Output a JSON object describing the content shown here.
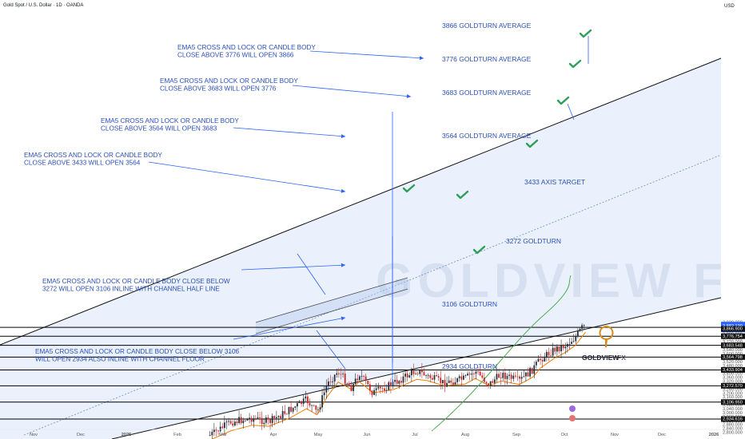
{
  "header": {
    "title": "Gold Spot / U.S. Dollar · 1D · OANDA",
    "currency": "USD"
  },
  "colors": {
    "up": "#2a2e39",
    "down": "#c62828",
    "blue": "#2962ff",
    "green": "#2e9e5a",
    "ema": "#f57c00",
    "sma": "#4caf50",
    "channel_fill": "#e6eefb",
    "level": "#000000",
    "text_blue": "#2b4fb8"
  },
  "price_tags": [
    {
      "label": "3,882.130",
      "sub": "04:24:13",
      "value": 3882.13,
      "highlight": true
    },
    {
      "label": "3,866.900",
      "value": 3866.9
    },
    {
      "label": "3,776.754",
      "value": 3776.754
    },
    {
      "label": "3,683.548",
      "value": 3683.548
    },
    {
      "label": "3,564.798",
      "value": 3564.798
    },
    {
      "label": "3,433.904",
      "value": 3433.904
    },
    {
      "label": "3,272.570",
      "value": 3272.57
    },
    {
      "label": "3,106.950",
      "value": 3106.95
    },
    {
      "label": "2,934.616",
      "value": 2934.616
    }
  ],
  "level_labels": [
    {
      "text": "3866 GOLDTURN AVERAGE",
      "value": 3866.9
    },
    {
      "text": "3776 GOLDTURN AVERAGE",
      "value": 3776.754
    },
    {
      "text": "3683 GOLDTURN AVERAGE",
      "value": 3683.548
    },
    {
      "text": "3564 GOLDTURN AVERAGE",
      "value": 3564.798
    },
    {
      "text": "3433 AXIS TARGET",
      "value": 3433.904
    },
    {
      "text": "3272 GOLDTURN",
      "value": 3272.57
    },
    {
      "text": "3106 GOLDTURN",
      "value": 3106.95
    },
    {
      "text": "2934 GOLDTURN",
      "value": 2934.616
    }
  ],
  "notes": [
    {
      "lines": [
        "EMA5 CROSS AND LOCK OR CANDLE BODY",
        "CLOSE ABOVE 3776 WILL OPEN 3866"
      ]
    },
    {
      "lines": [
        "EMA5 CROSS AND LOCK OR CANDLE BODY",
        "CLOSE ABOVE 3683 WILL OPEN 3776"
      ]
    },
    {
      "lines": [
        "EMA5 CROSS AND LOCK OR CANDLE BODY",
        "CLOSE ABOVE 3564 WILL OPEN 3683"
      ]
    },
    {
      "lines": [
        "EMA5 CROSS AND LOCK OR CANDLE BODY",
        "CLOSE ABOVE 3433 WILL OPEN 3564"
      ]
    },
    {
      "lines": [
        "EMA5 CROSS AND LOCK OR CANDLE BODY CLOSE BELOW",
        "3272 WILL OPEN 3106 INLINE WITH CHANNEL HALF LINE"
      ]
    },
    {
      "lines": [
        "EMA5 CROSS AND LOCK OR CANDLE BODY CLOSE BELOW 3106",
        "WILL OPEN 2934 ALSO INLINE WITH CHANNEL FLOOR"
      ]
    }
  ],
  "logo": {
    "name": "GOLDVIEW",
    "suffix": "FX",
    "watermark": "GOLDVIEW F"
  },
  "chart_data": {
    "type": "candlestick",
    "title": "Gold Spot / U.S. Dollar · 1D · OANDA",
    "ylim": [
      2790,
      3925
    ],
    "y_ticks": [
      2800,
      2840,
      2880,
      2920,
      2960,
      3000,
      3040,
      3080,
      3120,
      3160,
      3200,
      3240,
      3280,
      3320,
      3360,
      3400,
      3440,
      3480,
      3520,
      3560,
      3600,
      3640,
      3680,
      3720,
      3760,
      3800,
      3840,
      3880,
      3920
    ],
    "y_tick_labels": [
      "2,800.000",
      "2,840.000",
      "2,880.000",
      "2,920.000",
      "2,960.000",
      "3,000.000",
      "3,040.000",
      "3,080.000",
      "3,120.000",
      "3,160.000",
      "3,200.000",
      "3,240.000",
      "3,280.000",
      "3,320.000",
      "3,360.000",
      "3,400.000",
      "3,440.000",
      "3,480.000",
      "3,520.000",
      "3,560.000",
      "3,600.000",
      "3,640.000",
      "3,680.000",
      "3,720.000",
      "3,760.000",
      "3,800.000",
      "3,840.000",
      "3,880.000",
      "3,920.000"
    ],
    "x_labels": [
      "Nov",
      "Dec",
      "2025",
      "Feb",
      "Mar",
      "Apr",
      "May",
      "Jun",
      "Jul",
      "Aug",
      "Sep",
      "Oct",
      "Nov",
      "Dec",
      "2026"
    ],
    "levels": [
      3866.9,
      3776.754,
      3683.548,
      3564.798,
      3433.904,
      3272.57,
      3106.95,
      2934.616
    ],
    "last_price": 3882.13,
    "close_path": [
      {
        "date": "2025-01-27",
        "close": 2770
      },
      {
        "date": "2025-02-10",
        "close": 2905
      },
      {
        "date": "2025-02-24",
        "close": 2945
      },
      {
        "date": "2025-03-07",
        "close": 2905
      },
      {
        "date": "2025-03-21",
        "close": 3030
      },
      {
        "date": "2025-04-01",
        "close": 3130
      },
      {
        "date": "2025-04-08",
        "close": 3000
      },
      {
        "date": "2025-04-15",
        "close": 3300
      },
      {
        "date": "2025-04-22",
        "close": 3420
      },
      {
        "date": "2025-05-01",
        "close": 3250
      },
      {
        "date": "2025-05-06",
        "close": 3400
      },
      {
        "date": "2025-05-15",
        "close": 3200
      },
      {
        "date": "2025-05-29",
        "close": 3300
      },
      {
        "date": "2025-06-13",
        "close": 3430
      },
      {
        "date": "2025-06-20",
        "close": 3370
      },
      {
        "date": "2025-07-01",
        "close": 3300
      },
      {
        "date": "2025-07-15",
        "close": 3345
      },
      {
        "date": "2025-07-22",
        "close": 3420
      },
      {
        "date": "2025-07-31",
        "close": 3290
      },
      {
        "date": "2025-08-08",
        "close": 3390
      },
      {
        "date": "2025-08-20",
        "close": 3320
      },
      {
        "date": "2025-08-29",
        "close": 3440
      },
      {
        "date": "2025-09-03",
        "close": 3540
      },
      {
        "date": "2025-09-12",
        "close": 3640
      },
      {
        "date": "2025-09-19",
        "close": 3680
      },
      {
        "date": "2025-09-26",
        "close": 3760
      },
      {
        "date": "2025-10-01",
        "close": 3870
      },
      {
        "date": "2025-10-03",
        "close": 3882
      }
    ]
  }
}
